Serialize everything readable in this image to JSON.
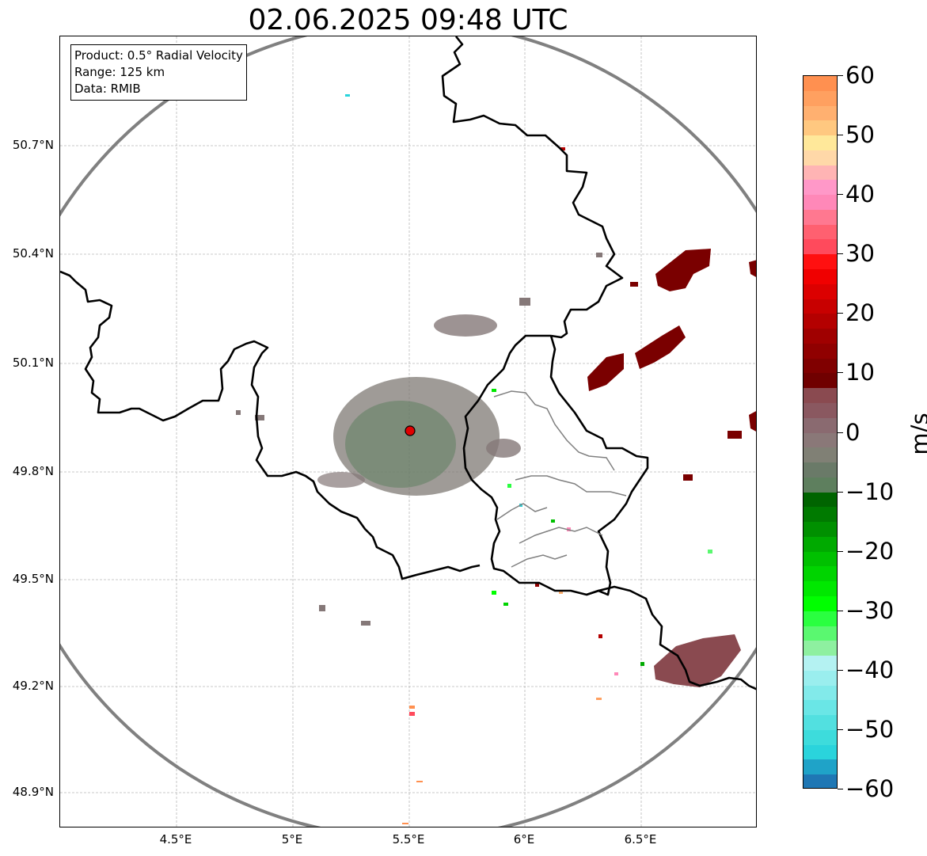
{
  "title": "02.06.2025 09:48 UTC",
  "info_box": {
    "product": "Product: 0.5° Radial Velocity",
    "range": "Range: 125 km",
    "data": "Data: RMIB"
  },
  "lat_ticks": [
    "50.7°N",
    "50.4°N",
    "50.1°N",
    "49.8°N",
    "49.5°N",
    "49.2°N",
    "48.9°N"
  ],
  "lon_ticks": [
    "4.5°E",
    "5°E",
    "5.5°E",
    "6°E",
    "6.5°E"
  ],
  "map_extent": {
    "lon_min": 4.0,
    "lon_max": 7.0,
    "lat_min": 48.8,
    "lat_max": 50.99
  },
  "radar_site": {
    "lon": 5.5,
    "lat": 49.91,
    "color": "#e00000"
  },
  "colorbar": {
    "unit": "m/s",
    "min": -60,
    "max": 60,
    "ticks": [
      "60",
      "50",
      "40",
      "30",
      "20",
      "10",
      "0",
      "−10",
      "−20",
      "−30",
      "−40",
      "−50",
      "−60"
    ],
    "colors": [
      "#1f77b4",
      "#1fa3c8",
      "#2ad4dc",
      "#3ddcdc",
      "#52e0e0",
      "#6ae6e6",
      "#82eaea",
      "#9aeeee",
      "#b4f2f2",
      "#8ef0a0",
      "#5af870",
      "#2aff40",
      "#00ff00",
      "#00e800",
      "#00d400",
      "#00c000",
      "#00aa00",
      "#009000",
      "#007a00",
      "#006400",
      "#5e7f5e",
      "#6a7a68",
      "#808075",
      "#8a7878",
      "#8a6a70",
      "#8a5860",
      "#8a4a50",
      "#700000",
      "#800000",
      "#900000",
      "#a00000",
      "#b40000",
      "#c80000",
      "#dc0000",
      "#f00000",
      "#ff1010",
      "#ff4a5c",
      "#ff6070",
      "#ff7890",
      "#ff88b8",
      "#ff98c8",
      "#ffb4b4",
      "#ffd8a8",
      "#ffe89a",
      "#ffc880",
      "#ffb070",
      "#ffa060",
      "#ff9050"
    ]
  },
  "colors": {
    "frame": "#000000",
    "grid": "#b0b0b0",
    "range_ring": "#808080",
    "border": "#000000",
    "subregion": "#808080"
  }
}
